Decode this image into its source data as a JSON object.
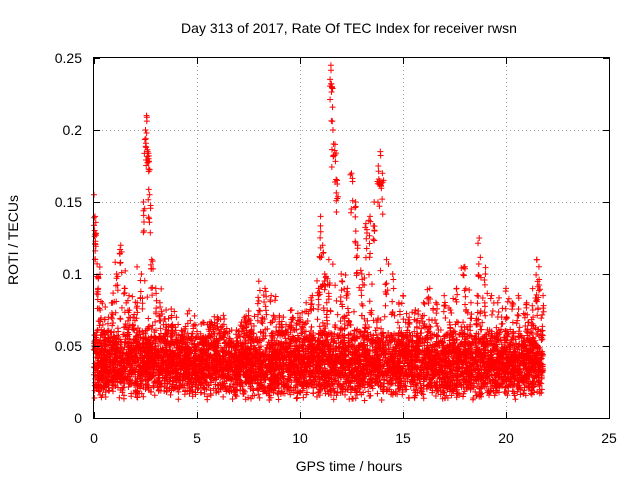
{
  "chart_data": {
    "type": "scatter",
    "title": "Day 313 of 2017, Rate Of TEC Index for receiver rwsn",
    "xlabel": "GPS time / hours",
    "ylabel": "ROTI / TECUs",
    "xlim": [
      0,
      25
    ],
    "ylim": [
      0,
      0.25
    ],
    "xticks": [
      "0",
      "5",
      "10",
      "15",
      "20",
      "25"
    ],
    "yticks": [
      "0",
      "0.05",
      "0.1",
      "0.15",
      "0.2",
      "0.25"
    ],
    "grid": true,
    "legend": "none",
    "marker": "+",
    "color": "#ff0000",
    "x_data_range": [
      0,
      21.8
    ],
    "series": [
      {
        "x": [
          0.0,
          0.05,
          0.1,
          0.15,
          0.2,
          0.3,
          0.5,
          0.7,
          0.9,
          1.1,
          1.3,
          1.5,
          1.7,
          1.9,
          2.1,
          2.3,
          2.4,
          2.5,
          2.55,
          2.6,
          2.65,
          2.7,
          2.8,
          3.0,
          3.2,
          3.5,
          3.8,
          4.0,
          4.3,
          4.6,
          5.0,
          5.3,
          5.6,
          6.0,
          6.3,
          6.6,
          7.0,
          7.3,
          7.6,
          8.0,
          8.3,
          8.6,
          9.0,
          9.3,
          9.6,
          10.0,
          10.3,
          10.6,
          10.9,
          11.0,
          11.1,
          11.2,
          11.3,
          11.4,
          11.5,
          11.55,
          11.6,
          11.7,
          11.8,
          12.0,
          12.3,
          12.5,
          12.7,
          12.8,
          13.0,
          13.2,
          13.4,
          13.6,
          13.8,
          13.9,
          14.0,
          14.2,
          14.5,
          14.8,
          15.0,
          15.3,
          15.6,
          16.0,
          16.3,
          16.6,
          17.0,
          17.3,
          17.6,
          18.0,
          18.3,
          18.6,
          18.7,
          19.0,
          19.3,
          19.6,
          20.0,
          20.3,
          20.6,
          21.0,
          21.3,
          21.5,
          21.6,
          21.8
        ],
        "y": [
          0.155,
          0.14,
          0.127,
          0.107,
          0.09,
          0.075,
          0.06,
          0.07,
          0.08,
          0.1,
          0.12,
          0.09,
          0.085,
          0.07,
          0.08,
          0.1,
          0.15,
          0.2,
          0.21,
          0.185,
          0.18,
          0.155,
          0.11,
          0.09,
          0.08,
          0.075,
          0.065,
          0.07,
          0.06,
          0.055,
          0.06,
          0.055,
          0.065,
          0.07,
          0.06,
          0.055,
          0.06,
          0.07,
          0.06,
          0.095,
          0.09,
          0.085,
          0.07,
          0.06,
          0.075,
          0.07,
          0.08,
          0.085,
          0.09,
          0.14,
          0.12,
          0.1,
          0.08,
          0.11,
          0.245,
          0.23,
          0.2,
          0.19,
          0.165,
          0.1,
          0.09,
          0.17,
          0.15,
          0.12,
          0.1,
          0.135,
          0.14,
          0.15,
          0.175,
          0.185,
          0.17,
          0.11,
          0.1,
          0.08,
          0.085,
          0.07,
          0.075,
          0.08,
          0.09,
          0.08,
          0.085,
          0.075,
          0.09,
          0.105,
          0.08,
          0.085,
          0.125,
          0.1,
          0.085,
          0.08,
          0.09,
          0.08,
          0.085,
          0.08,
          0.075,
          0.11,
          0.105,
          0.085
        ]
      }
    ]
  }
}
